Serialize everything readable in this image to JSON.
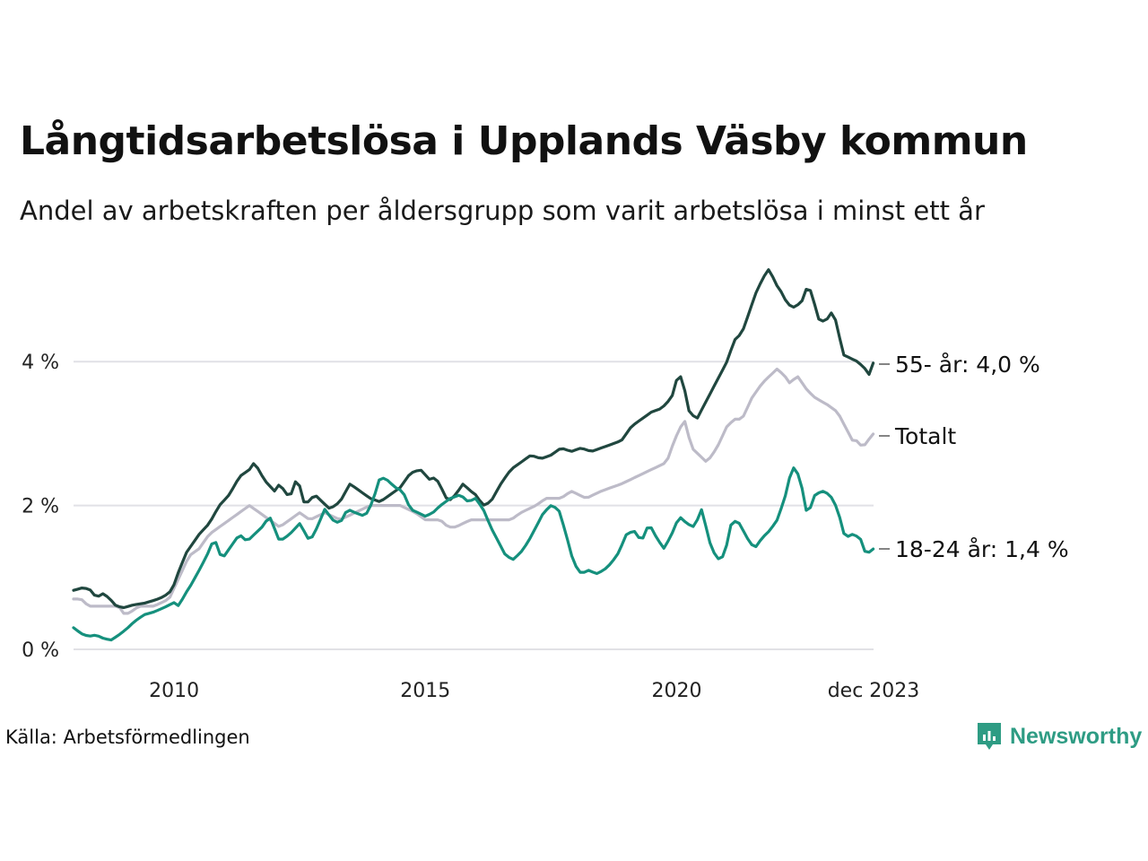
{
  "chart_data": {
    "type": "line",
    "title": "Långtidsarbetslösa i Upplands Väsby kommun",
    "subtitle": "Andel av arbetskraften per åldersgrupp som varit arbetslösa i minst ett år",
    "xlabel": "",
    "ylabel": "",
    "x_start": 2008.0,
    "x_end": 2023.917,
    "x_step": 0.0833,
    "xlim": [
      2008.0,
      2023.917
    ],
    "ylim": [
      0,
      5.3
    ],
    "x_ticks": [
      {
        "value": 2010,
        "label": "2010"
      },
      {
        "value": 2015,
        "label": "2015"
      },
      {
        "value": 2020,
        "label": "2020"
      },
      {
        "value": 2023.917,
        "label": "dec 2023"
      }
    ],
    "y_ticks": [
      {
        "value": 0,
        "label": "0 %"
      },
      {
        "value": 2,
        "label": "2 %"
      },
      {
        "value": 4,
        "label": "4 %"
      }
    ],
    "grid": true,
    "series": [
      {
        "name": "Totalt",
        "end_label": "Totalt",
        "color": "#bdbbc8",
        "anchors": [
          [
            2008.0,
            0.7
          ],
          [
            2008.15,
            0.7
          ],
          [
            2008.3,
            0.6
          ],
          [
            2008.6,
            0.6
          ],
          [
            2008.9,
            0.6
          ],
          [
            2008.98,
            0.5
          ],
          [
            2009.1,
            0.5
          ],
          [
            2009.3,
            0.6
          ],
          [
            2009.6,
            0.6
          ],
          [
            2009.9,
            0.7
          ],
          [
            2010.1,
            1.0
          ],
          [
            2010.3,
            1.3
          ],
          [
            2010.5,
            1.4
          ],
          [
            2010.7,
            1.6
          ],
          [
            2010.9,
            1.7
          ],
          [
            2011.1,
            1.8
          ],
          [
            2011.3,
            1.9
          ],
          [
            2011.5,
            2.0
          ],
          [
            2011.7,
            1.9
          ],
          [
            2011.9,
            1.8
          ],
          [
            2012.1,
            1.7
          ],
          [
            2012.3,
            1.8
          ],
          [
            2012.5,
            1.9
          ],
          [
            2012.7,
            1.8
          ],
          [
            2013.0,
            1.9
          ],
          [
            2013.3,
            1.8
          ],
          [
            2013.6,
            1.9
          ],
          [
            2013.9,
            2.0
          ],
          [
            2014.2,
            2.0
          ],
          [
            2014.5,
            2.0
          ],
          [
            2014.8,
            1.9
          ],
          [
            2015.0,
            1.8
          ],
          [
            2015.3,
            1.8
          ],
          [
            2015.45,
            1.7
          ],
          [
            2015.6,
            1.7
          ],
          [
            2015.9,
            1.8
          ],
          [
            2016.3,
            1.8
          ],
          [
            2016.7,
            1.8
          ],
          [
            2016.9,
            1.9
          ],
          [
            2017.2,
            2.0
          ],
          [
            2017.4,
            2.1
          ],
          [
            2017.7,
            2.1
          ],
          [
            2017.9,
            2.2
          ],
          [
            2018.2,
            2.1
          ],
          [
            2018.5,
            2.2
          ],
          [
            2018.9,
            2.3
          ],
          [
            2019.2,
            2.4
          ],
          [
            2019.5,
            2.5
          ],
          [
            2019.8,
            2.6
          ],
          [
            2019.95,
            2.9
          ],
          [
            2020.15,
            3.2
          ],
          [
            2020.3,
            2.8
          ],
          [
            2020.45,
            2.7
          ],
          [
            2020.6,
            2.6
          ],
          [
            2020.8,
            2.8
          ],
          [
            2021.0,
            3.1
          ],
          [
            2021.15,
            3.2
          ],
          [
            2021.3,
            3.2
          ],
          [
            2021.5,
            3.5
          ],
          [
            2021.7,
            3.7
          ],
          [
            2021.85,
            3.8
          ],
          [
            2022.0,
            3.9
          ],
          [
            2022.15,
            3.8
          ],
          [
            2022.25,
            3.7
          ],
          [
            2022.4,
            3.8
          ],
          [
            2022.5,
            3.7
          ],
          [
            2022.6,
            3.6
          ],
          [
            2022.75,
            3.5
          ],
          [
            2023.0,
            3.4
          ],
          [
            2023.2,
            3.3
          ],
          [
            2023.35,
            3.1
          ],
          [
            2023.5,
            2.9
          ],
          [
            2023.6,
            2.9
          ],
          [
            2023.7,
            2.8
          ],
          [
            2023.8,
            2.9
          ],
          [
            2023.917,
            3.0
          ]
        ]
      },
      {
        "name": "55- år",
        "end_label": "55- år: 4,0 %",
        "color": "#20473f",
        "anchors": [
          [
            2008.0,
            0.82
          ],
          [
            2008.2,
            0.86
          ],
          [
            2008.35,
            0.82
          ],
          [
            2008.45,
            0.72
          ],
          [
            2008.6,
            0.78
          ],
          [
            2008.75,
            0.68
          ],
          [
            2008.85,
            0.6
          ],
          [
            2009.0,
            0.58
          ],
          [
            2009.2,
            0.62
          ],
          [
            2009.4,
            0.64
          ],
          [
            2009.6,
            0.68
          ],
          [
            2009.75,
            0.72
          ],
          [
            2009.9,
            0.78
          ],
          [
            2010.0,
            0.9
          ],
          [
            2010.1,
            1.1
          ],
          [
            2010.25,
            1.35
          ],
          [
            2010.4,
            1.5
          ],
          [
            2010.5,
            1.6
          ],
          [
            2010.7,
            1.75
          ],
          [
            2010.9,
            2.0
          ],
          [
            2011.1,
            2.15
          ],
          [
            2011.3,
            2.4
          ],
          [
            2011.5,
            2.5
          ],
          [
            2011.6,
            2.6
          ],
          [
            2011.8,
            2.35
          ],
          [
            2012.0,
            2.2
          ],
          [
            2012.1,
            2.3
          ],
          [
            2012.3,
            2.1
          ],
          [
            2012.45,
            2.4
          ],
          [
            2012.6,
            2.0
          ],
          [
            2012.8,
            2.15
          ],
          [
            2012.95,
            2.05
          ],
          [
            2013.1,
            1.95
          ],
          [
            2013.3,
            2.05
          ],
          [
            2013.5,
            2.3
          ],
          [
            2013.7,
            2.2
          ],
          [
            2013.9,
            2.1
          ],
          [
            2014.1,
            2.05
          ],
          [
            2014.3,
            2.15
          ],
          [
            2014.5,
            2.25
          ],
          [
            2014.7,
            2.45
          ],
          [
            2014.9,
            2.5
          ],
          [
            2015.1,
            2.35
          ],
          [
            2015.2,
            2.4
          ],
          [
            2015.35,
            2.2
          ],
          [
            2015.45,
            2.05
          ],
          [
            2015.6,
            2.15
          ],
          [
            2015.75,
            2.3
          ],
          [
            2015.9,
            2.2
          ],
          [
            2016.0,
            2.15
          ],
          [
            2016.15,
            2.0
          ],
          [
            2016.3,
            2.05
          ],
          [
            2016.5,
            2.3
          ],
          [
            2016.7,
            2.5
          ],
          [
            2016.9,
            2.6
          ],
          [
            2017.1,
            2.7
          ],
          [
            2017.3,
            2.65
          ],
          [
            2017.5,
            2.7
          ],
          [
            2017.7,
            2.8
          ],
          [
            2017.9,
            2.75
          ],
          [
            2018.1,
            2.8
          ],
          [
            2018.3,
            2.75
          ],
          [
            2018.5,
            2.8
          ],
          [
            2018.7,
            2.85
          ],
          [
            2018.9,
            2.9
          ],
          [
            2019.1,
            3.1
          ],
          [
            2019.3,
            3.2
          ],
          [
            2019.5,
            3.3
          ],
          [
            2019.7,
            3.35
          ],
          [
            2019.9,
            3.5
          ],
          [
            2020.0,
            3.75
          ],
          [
            2020.1,
            3.8
          ],
          [
            2020.25,
            3.3
          ],
          [
            2020.4,
            3.2
          ],
          [
            2020.55,
            3.4
          ],
          [
            2020.7,
            3.6
          ],
          [
            2020.85,
            3.8
          ],
          [
            2021.0,
            4.0
          ],
          [
            2021.15,
            4.3
          ],
          [
            2021.3,
            4.4
          ],
          [
            2021.45,
            4.7
          ],
          [
            2021.6,
            5.0
          ],
          [
            2021.75,
            5.2
          ],
          [
            2021.85,
            5.3
          ],
          [
            2021.95,
            5.1
          ],
          [
            2022.1,
            4.95
          ],
          [
            2022.2,
            4.8
          ],
          [
            2022.35,
            4.75
          ],
          [
            2022.5,
            4.85
          ],
          [
            2022.6,
            5.05
          ],
          [
            2022.7,
            4.95
          ],
          [
            2022.8,
            4.6
          ],
          [
            2022.95,
            4.55
          ],
          [
            2023.1,
            4.7
          ],
          [
            2023.2,
            4.5
          ],
          [
            2023.3,
            4.1
          ],
          [
            2023.45,
            4.05
          ],
          [
            2023.6,
            4.0
          ],
          [
            2023.75,
            3.9
          ],
          [
            2023.85,
            3.8
          ],
          [
            2023.917,
            4.0
          ]
        ]
      },
      {
        "name": "18-24 år",
        "end_label": "18-24 år: 1,4 %",
        "color": "#15907d",
        "anchors": [
          [
            2008.0,
            0.3
          ],
          [
            2008.15,
            0.22
          ],
          [
            2008.3,
            0.18
          ],
          [
            2008.45,
            0.2
          ],
          [
            2008.6,
            0.15
          ],
          [
            2008.75,
            0.13
          ],
          [
            2008.9,
            0.2
          ],
          [
            2009.05,
            0.28
          ],
          [
            2009.2,
            0.38
          ],
          [
            2009.4,
            0.48
          ],
          [
            2009.6,
            0.52
          ],
          [
            2009.8,
            0.58
          ],
          [
            2010.0,
            0.65
          ],
          [
            2010.1,
            0.6
          ],
          [
            2010.2,
            0.75
          ],
          [
            2010.3,
            0.85
          ],
          [
            2010.5,
            1.1
          ],
          [
            2010.65,
            1.3
          ],
          [
            2010.8,
            1.55
          ],
          [
            2010.95,
            1.25
          ],
          [
            2011.1,
            1.4
          ],
          [
            2011.3,
            1.6
          ],
          [
            2011.45,
            1.5
          ],
          [
            2011.6,
            1.6
          ],
          [
            2011.75,
            1.7
          ],
          [
            2011.9,
            1.85
          ],
          [
            2012.1,
            1.5
          ],
          [
            2012.3,
            1.6
          ],
          [
            2012.5,
            1.75
          ],
          [
            2012.7,
            1.5
          ],
          [
            2012.85,
            1.7
          ],
          [
            2013.0,
            1.95
          ],
          [
            2013.15,
            1.8
          ],
          [
            2013.3,
            1.75
          ],
          [
            2013.45,
            1.95
          ],
          [
            2013.6,
            1.9
          ],
          [
            2013.8,
            1.85
          ],
          [
            2013.95,
            2.05
          ],
          [
            2014.1,
            2.4
          ],
          [
            2014.25,
            2.35
          ],
          [
            2014.4,
            2.25
          ],
          [
            2014.55,
            2.2
          ],
          [
            2014.7,
            1.95
          ],
          [
            2014.85,
            1.9
          ],
          [
            2015.0,
            1.85
          ],
          [
            2015.15,
            1.9
          ],
          [
            2015.3,
            2.0
          ],
          [
            2015.5,
            2.1
          ],
          [
            2015.7,
            2.15
          ],
          [
            2015.85,
            2.05
          ],
          [
            2016.0,
            2.1
          ],
          [
            2016.15,
            1.95
          ],
          [
            2016.3,
            1.7
          ],
          [
            2016.45,
            1.5
          ],
          [
            2016.6,
            1.3
          ],
          [
            2016.75,
            1.25
          ],
          [
            2016.9,
            1.35
          ],
          [
            2017.05,
            1.5
          ],
          [
            2017.2,
            1.7
          ],
          [
            2017.35,
            1.9
          ],
          [
            2017.5,
            2.0
          ],
          [
            2017.65,
            1.95
          ],
          [
            2017.8,
            1.6
          ],
          [
            2017.95,
            1.2
          ],
          [
            2018.1,
            1.05
          ],
          [
            2018.25,
            1.1
          ],
          [
            2018.4,
            1.05
          ],
          [
            2018.55,
            1.1
          ],
          [
            2018.7,
            1.2
          ],
          [
            2018.85,
            1.35
          ],
          [
            2019.0,
            1.6
          ],
          [
            2019.15,
            1.65
          ],
          [
            2019.3,
            1.5
          ],
          [
            2019.45,
            1.75
          ],
          [
            2019.6,
            1.55
          ],
          [
            2019.75,
            1.4
          ],
          [
            2019.9,
            1.6
          ],
          [
            2020.05,
            1.85
          ],
          [
            2020.2,
            1.75
          ],
          [
            2020.35,
            1.7
          ],
          [
            2020.5,
            1.95
          ],
          [
            2020.65,
            1.5
          ],
          [
            2020.8,
            1.25
          ],
          [
            2020.95,
            1.3
          ],
          [
            2021.1,
            1.8
          ],
          [
            2021.25,
            1.75
          ],
          [
            2021.4,
            1.55
          ],
          [
            2021.55,
            1.4
          ],
          [
            2021.7,
            1.55
          ],
          [
            2021.85,
            1.65
          ],
          [
            2022.0,
            1.8
          ],
          [
            2022.15,
            2.1
          ],
          [
            2022.3,
            2.55
          ],
          [
            2022.45,
            2.4
          ],
          [
            2022.6,
            1.85
          ],
          [
            2022.75,
            2.15
          ],
          [
            2022.9,
            2.2
          ],
          [
            2023.05,
            2.15
          ],
          [
            2023.2,
            1.95
          ],
          [
            2023.35,
            1.55
          ],
          [
            2023.5,
            1.6
          ],
          [
            2023.65,
            1.55
          ],
          [
            2023.75,
            1.35
          ],
          [
            2023.85,
            1.35
          ],
          [
            2023.917,
            1.4
          ]
        ]
      }
    ],
    "source": "Källa: Arbetsförmedlingen",
    "brand": "Newsworthy"
  }
}
